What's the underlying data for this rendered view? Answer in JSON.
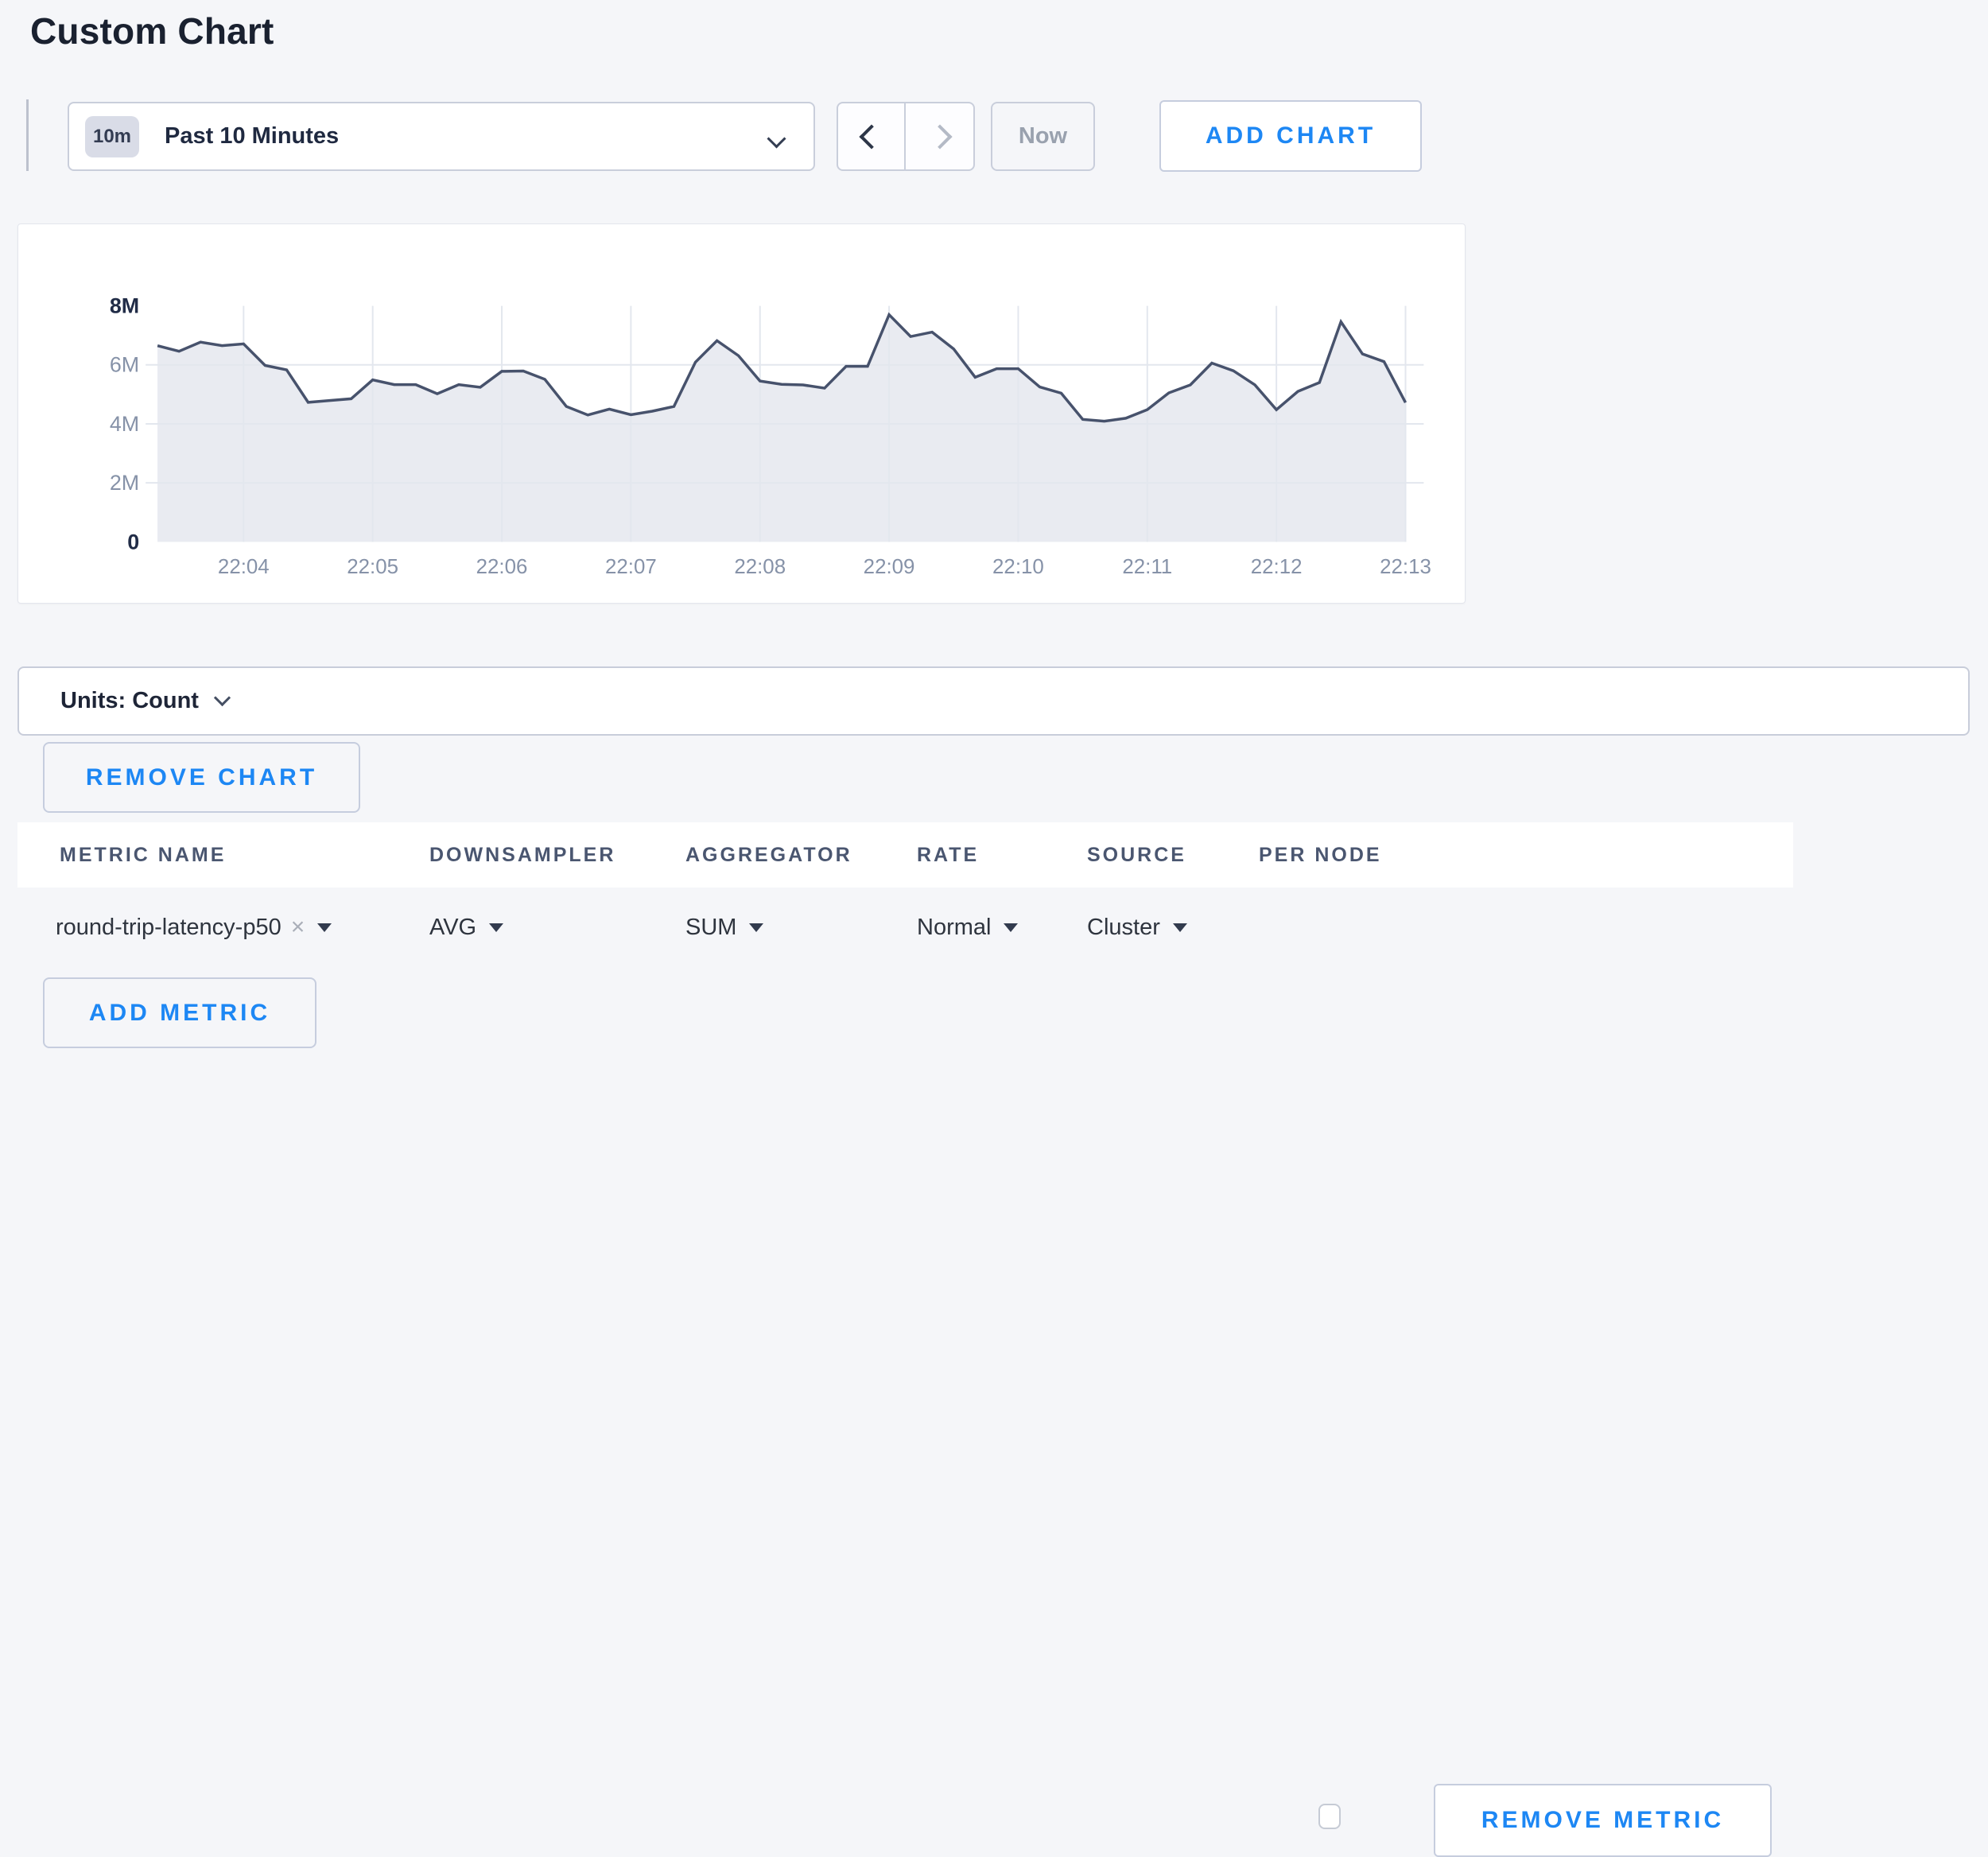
{
  "page": {
    "title": "Custom Chart",
    "background_color": "#f5f6f9",
    "accent_blue": "#1d87f4"
  },
  "toolbar": {
    "time_range": {
      "badge": "10m",
      "label": "Past 10 Minutes"
    },
    "back_icon": "chevron-left",
    "forward_icon": "chevron-right",
    "forward_disabled": true,
    "now_label": "Now",
    "now_disabled": true,
    "add_chart_label": "ADD CHART"
  },
  "chart_data": {
    "type": "area",
    "title": "",
    "xlabel": "",
    "ylabel": "",
    "unit": "Count",
    "ylim_millions": [
      0,
      8
    ],
    "grid": true,
    "legend": "none",
    "line_color": "#47526c",
    "fill_color": "#e9ebf1",
    "grid_color": "#e3e7ee",
    "y_ticks": [
      {
        "value": 8,
        "label": "8M",
        "strong": true
      },
      {
        "value": 6,
        "label": "6M",
        "strong": false
      },
      {
        "value": 4,
        "label": "4M",
        "strong": false
      },
      {
        "value": 2,
        "label": "2M",
        "strong": false
      },
      {
        "value": 0,
        "label": "0",
        "strong": true
      }
    ],
    "x_tick_labels": [
      "22:04",
      "22:05",
      "22:06",
      "22:07",
      "22:08",
      "22:09",
      "22:10",
      "22:11",
      "22:12",
      "22:13"
    ],
    "series": [
      {
        "name": "round-trip-latency-p50",
        "start_time": "22:03:20",
        "interval_seconds": 10,
        "first_x_tick_index": 4,
        "points_per_x_tick": 6,
        "values_millions": [
          6.65,
          6.46,
          6.77,
          6.65,
          6.71,
          5.98,
          5.83,
          4.73,
          4.79,
          4.85,
          5.49,
          5.33,
          5.33,
          5.02,
          5.33,
          5.24,
          5.78,
          5.79,
          5.51,
          4.59,
          4.3,
          4.5,
          4.31,
          4.43,
          4.59,
          6.09,
          6.82,
          6.31,
          5.45,
          5.34,
          5.32,
          5.21,
          5.95,
          5.95,
          7.7,
          6.96,
          7.11,
          6.54,
          5.58,
          5.87,
          5.87,
          5.25,
          5.04,
          4.15,
          4.09,
          4.19,
          4.48,
          5.05,
          5.32,
          6.06,
          5.8,
          5.32,
          4.48,
          5.1,
          5.4,
          7.46,
          6.37,
          6.11,
          4.72
        ]
      }
    ]
  },
  "units_bar": {
    "label": "Units: Count"
  },
  "remove_chart_label": "REMOVE CHART",
  "metrics_table": {
    "headers": [
      "METRIC NAME",
      "DOWNSAMPLER",
      "AGGREGATOR",
      "RATE",
      "SOURCE",
      "PER NODE"
    ],
    "row": {
      "metric_name": "round-trip-latency-p50",
      "clear_icon": "×",
      "downsampler": "AVG",
      "aggregator": "SUM",
      "rate": "Normal",
      "source": "Cluster",
      "per_node_checked": false,
      "remove_label": "REMOVE METRIC"
    },
    "add_metric_label": "ADD METRIC"
  }
}
